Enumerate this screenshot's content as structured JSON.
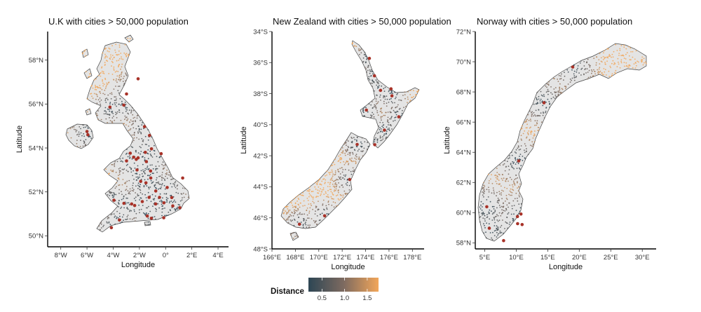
{
  "chart_data": [
    {
      "type": "scatter",
      "title": "U.K with cities > 50,000 population",
      "xlabel": "Longitude",
      "ylabel": "Latitude",
      "xlim": [
        -9,
        4.8
      ],
      "ylim": [
        49.5,
        59.3
      ],
      "x_ticks": [
        {
          "value": -8,
          "label": "8°W"
        },
        {
          "value": -6,
          "label": "6°W"
        },
        {
          "value": -4,
          "label": "4°W"
        },
        {
          "value": -2,
          "label": "2°W"
        },
        {
          "value": 0,
          "label": "0°"
        },
        {
          "value": 2,
          "label": "2°E"
        },
        {
          "value": 4,
          "label": "4°E"
        }
      ],
      "y_ticks": [
        {
          "value": 50,
          "label": "50°N"
        },
        {
          "value": 52,
          "label": "52°N"
        },
        {
          "value": 54,
          "label": "54°N"
        },
        {
          "value": 56,
          "label": "56°N"
        },
        {
          "value": 58,
          "label": "58°N"
        }
      ],
      "cities": [
        {
          "lon": -0.13,
          "lat": 51.5
        },
        {
          "lon": -1.9,
          "lat": 52.48
        },
        {
          "lon": -2.24,
          "lat": 53.48
        },
        {
          "lon": -1.55,
          "lat": 53.8
        },
        {
          "lon": -2.98,
          "lat": 53.41
        },
        {
          "lon": -1.47,
          "lat": 53.38
        },
        {
          "lon": -4.25,
          "lat": 55.86
        },
        {
          "lon": -3.19,
          "lat": 55.95
        },
        {
          "lon": -2.59,
          "lat": 51.45
        },
        {
          "lon": -1.61,
          "lat": 54.97
        },
        {
          "lon": -1.15,
          "lat": 52.95
        },
        {
          "lon": -1.13,
          "lat": 52.63
        },
        {
          "lon": -3.18,
          "lat": 51.48
        },
        {
          "lon": -5.93,
          "lat": 54.6
        },
        {
          "lon": -2.1,
          "lat": 57.15
        },
        {
          "lon": 1.3,
          "lat": 52.63
        },
        {
          "lon": -1.4,
          "lat": 50.9
        },
        {
          "lon": -1.09,
          "lat": 50.8
        },
        {
          "lon": -4.14,
          "lat": 50.37
        },
        {
          "lon": -1.26,
          "lat": 51.75
        },
        {
          "lon": 0.12,
          "lat": 52.2
        },
        {
          "lon": -0.34,
          "lat": 53.74
        },
        {
          "lon": -1.08,
          "lat": 53.96
        },
        {
          "lon": -2.98,
          "lat": 56.46
        },
        {
          "lon": -3.94,
          "lat": 51.62
        },
        {
          "lon": -0.14,
          "lat": 50.82
        },
        {
          "lon": 1.08,
          "lat": 51.28
        },
        {
          "lon": 0.55,
          "lat": 51.36
        },
        {
          "lon": -0.76,
          "lat": 51.45
        },
        {
          "lon": -2.7,
          "lat": 53.76
        },
        {
          "lon": -2.18,
          "lat": 53.0
        },
        {
          "lon": -1.5,
          "lat": 52.41
        },
        {
          "lon": -1.23,
          "lat": 54.57
        },
        {
          "lon": -6.0,
          "lat": 54.75
        },
        {
          "lon": -0.75,
          "lat": 52.04
        },
        {
          "lon": -2.36,
          "lat": 51.38
        },
        {
          "lon": -3.53,
          "lat": 50.72
        },
        {
          "lon": 0.47,
          "lat": 51.74
        },
        {
          "lon": -0.47,
          "lat": 51.75
        },
        {
          "lon": -1.78,
          "lat": 51.56
        },
        {
          "lon": -2.44,
          "lat": 53.58
        },
        {
          "lon": -2.1,
          "lat": 53.55
        }
      ],
      "color": "#a83228"
    },
    {
      "type": "scatter",
      "title": "New Zealand with cities > 50,000 population",
      "xlabel": "Longitude",
      "ylabel": "Latitude",
      "xlim": [
        166,
        179
      ],
      "ylim": [
        -48,
        -34
      ],
      "x_ticks": [
        {
          "value": 166,
          "label": "166°E"
        },
        {
          "value": 168,
          "label": "168°E"
        },
        {
          "value": 170,
          "label": "170°E"
        },
        {
          "value": 172,
          "label": "172°E"
        },
        {
          "value": 174,
          "label": "174°E"
        },
        {
          "value": 176,
          "label": "176°E"
        },
        {
          "value": 178,
          "label": "178°E"
        }
      ],
      "y_ticks": [
        {
          "value": -34,
          "label": "34°S"
        },
        {
          "value": -36,
          "label": "36°S"
        },
        {
          "value": -38,
          "label": "38°S"
        },
        {
          "value": -40,
          "label": "40°S"
        },
        {
          "value": -42,
          "label": "42°S"
        },
        {
          "value": -44,
          "label": "44°S"
        },
        {
          "value": -46,
          "label": "46°S"
        },
        {
          "value": -48,
          "label": "48°S"
        }
      ],
      "cities": [
        {
          "lon": 174.76,
          "lat": -36.85
        },
        {
          "lon": 175.28,
          "lat": -37.79
        },
        {
          "lon": 176.17,
          "lat": -37.69
        },
        {
          "lon": 174.78,
          "lat": -41.29
        },
        {
          "lon": 172.64,
          "lat": -43.53
        },
        {
          "lon": 170.5,
          "lat": -45.87
        },
        {
          "lon": 175.61,
          "lat": -40.35
        },
        {
          "lon": 176.84,
          "lat": -39.49
        },
        {
          "lon": 174.07,
          "lat": -39.06
        },
        {
          "lon": 173.28,
          "lat": -41.27
        },
        {
          "lon": 176.25,
          "lat": -38.14
        },
        {
          "lon": 174.32,
          "lat": -35.73
        },
        {
          "lon": 168.35,
          "lat": -46.41
        }
      ],
      "color": "#a83228"
    },
    {
      "type": "scatter",
      "title": "Norway with cities > 50,000 population",
      "xlabel": "Longitude",
      "ylabel": "Latitude",
      "xlim": [
        3.5,
        32.2
      ],
      "ylim": [
        57.6,
        72
      ],
      "x_ticks": [
        {
          "value": 5,
          "label": "5°E"
        },
        {
          "value": 10,
          "label": "10°E"
        },
        {
          "value": 15,
          "label": "15°E"
        },
        {
          "value": 20,
          "label": "20°E"
        },
        {
          "value": 25,
          "label": "25°E"
        },
        {
          "value": 30,
          "label": "30°E"
        }
      ],
      "y_ticks": [
        {
          "value": 58,
          "label": "58°N"
        },
        {
          "value": 60,
          "label": "60°N"
        },
        {
          "value": 62,
          "label": "62°N"
        },
        {
          "value": 64,
          "label": "64°N"
        },
        {
          "value": 66,
          "label": "66°N"
        },
        {
          "value": 68,
          "label": "68°N"
        },
        {
          "value": 70,
          "label": "70°N"
        },
        {
          "value": 72,
          "label": "72°N"
        }
      ],
      "cities": [
        {
          "lon": 10.75,
          "lat": 59.91
        },
        {
          "lon": 5.32,
          "lat": 60.39
        },
        {
          "lon": 10.4,
          "lat": 63.43
        },
        {
          "lon": 5.73,
          "lat": 58.97
        },
        {
          "lon": 7.99,
          "lat": 58.15
        },
        {
          "lon": 10.22,
          "lat": 59.27
        },
        {
          "lon": 10.93,
          "lat": 59.21
        },
        {
          "lon": 10.2,
          "lat": 59.74
        },
        {
          "lon": 14.4,
          "lat": 67.28
        },
        {
          "lon": 18.96,
          "lat": 69.65
        }
      ],
      "color": "#a83228"
    }
  ],
  "legend": {
    "title": "Distance",
    "tick_labels": [
      "0.5",
      "1.0",
      "1.5"
    ],
    "tick_values": [
      0.5,
      1.0,
      1.5
    ],
    "range": [
      0.2,
      1.75
    ],
    "color_low": "#2d4654",
    "color_mid": "#7d6a60",
    "color_high": "#f2a65a"
  }
}
